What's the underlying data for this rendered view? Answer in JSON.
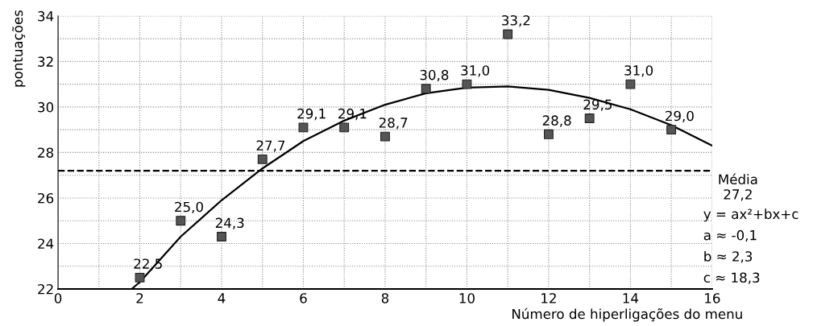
{
  "chart_data": {
    "type": "scatter",
    "xlabel": "Número de hiperligações do menu",
    "ylabel": "pontuações",
    "xlim": [
      0,
      16
    ],
    "ylim": [
      22,
      34
    ],
    "xticks": [
      0,
      {
        "value": 1,
        "label": null
      },
      2,
      {
        "value": 3,
        "label": null
      },
      4,
      {
        "value": 5,
        "label": null
      },
      6,
      {
        "value": 7,
        "label": null
      },
      8,
      {
        "value": 9,
        "label": null
      },
      10,
      {
        "value": 11,
        "label": null
      },
      12,
      {
        "value": 13,
        "label": null
      },
      14,
      {
        "value": 15,
        "label": null
      },
      16
    ],
    "yticks": [
      22,
      {
        "value": 23,
        "label": null
      },
      24,
      {
        "value": 25,
        "label": null
      },
      26,
      {
        "value": 27,
        "label": null
      },
      28,
      {
        "value": 29,
        "label": null
      },
      30,
      {
        "value": 31,
        "label": null
      },
      32,
      {
        "value": 33,
        "label": null
      },
      34
    ],
    "grid": true,
    "series": [
      {
        "marker": "square",
        "color": "#555555",
        "x": [
          2,
          3,
          4,
          5,
          6,
          7,
          8,
          9,
          10,
          11,
          12,
          13,
          14,
          15
        ],
        "values": [
          22.5,
          25.0,
          24.3,
          27.7,
          29.1,
          29.1,
          28.7,
          30.8,
          31.0,
          33.2,
          28.8,
          29.5,
          31.0,
          29.0
        ],
        "value_labels": [
          "22,5",
          "25,0",
          "24,3",
          "27,7",
          "29,1",
          "29,1",
          "28,7",
          "30,8",
          "31,0",
          "33,2",
          "28,8",
          "29,5",
          "31,0",
          "29,0"
        ]
      },
      {
        "type": "line",
        "color": "#000000",
        "line_style": "solid",
        "x": [
          1.8,
          2,
          3,
          4,
          5,
          6,
          7,
          8,
          9,
          10,
          11,
          12,
          13,
          14,
          15,
          16
        ],
        "values": [
          22.0,
          22.3,
          24.3,
          25.9,
          27.3,
          28.5,
          29.4,
          30.1,
          30.6,
          30.85,
          30.9,
          30.75,
          30.4,
          29.9,
          29.2,
          28.3
        ]
      }
    ],
    "ref_lines": [
      {
        "axis": "y",
        "value": 27.2,
        "label": "Média\n27,2",
        "color": "#000000",
        "line_style": "dashed"
      }
    ],
    "annotations": [
      "y = ax²+bx+c",
      "a ≈ -0,1",
      "b ≈ 2,3",
      "c ≈ 18,3"
    ]
  }
}
